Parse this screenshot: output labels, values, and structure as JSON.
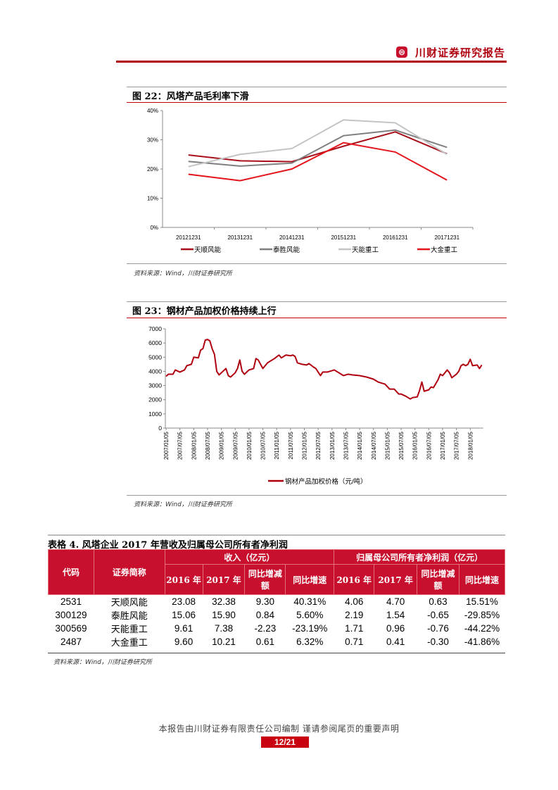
{
  "header": {
    "brand": "川财证券研究报告",
    "logo_icon": "chuancai-logo-icon",
    "accent": "#b0000f"
  },
  "figure22": {
    "title": "图 22：风塔产品毛利率下滑",
    "source": "资料来源：Wind，川财证券研究所",
    "chart_data": {
      "type": "line",
      "categories": [
        "20121231",
        "20131231",
        "20141231",
        "20151231",
        "20161231",
        "20171231"
      ],
      "y_ticks": [
        "0%",
        "10%",
        "20%",
        "30%",
        "40%"
      ],
      "ylim": [
        0,
        40
      ],
      "unit": "%",
      "legend_position": "bottom",
      "grid": false,
      "series": [
        {
          "name": "天顺风能",
          "color": "#a80f1a",
          "values": [
            24.8,
            22.8,
            22.5,
            27.8,
            32.7,
            25.2
          ]
        },
        {
          "name": "泰胜风能",
          "color": "#7f7f7f",
          "values": [
            22.6,
            21.0,
            22.0,
            31.4,
            33.3,
            27.4
          ]
        },
        {
          "name": "天能重工",
          "color": "#c3c3c3",
          "values": [
            20.8,
            25.0,
            27.0,
            36.8,
            35.8,
            25.0
          ]
        },
        {
          "name": "大金重工",
          "color": "#e3141c",
          "values": [
            18.2,
            16.0,
            20.0,
            29.0,
            25.8,
            16.2
          ]
        }
      ]
    }
  },
  "figure23": {
    "title": "图 23：钢材产品加权价格持续上行",
    "source": "资料来源：Wind，川财证券研究所",
    "chart_data": {
      "type": "line",
      "y_ticks": [
        "0",
        "1000",
        "2000",
        "3000",
        "4000",
        "5000",
        "6000",
        "7000"
      ],
      "ylim": [
        0,
        7000
      ],
      "x_ticks": [
        "2007/01/05",
        "2007/07/05",
        "2008/01/05",
        "2008/07/05",
        "2009/01/05",
        "2009/07/05",
        "2010/01/05",
        "2010/07/05",
        "2011/01/05",
        "2011/07/05",
        "2012/01/05",
        "2012/07/05",
        "2013/01/05",
        "2013/07/05",
        "2014/01/05",
        "2014/07/05",
        "2015/01/05",
        "2015/07/05",
        "2016/01/05",
        "2016/07/05",
        "2017/01/05",
        "2017/07/05",
        "2018/01/05"
      ],
      "legend_position": "bottom",
      "series": [
        {
          "name": "钢材产品加权价格（元/吨）",
          "color": "#b0000f",
          "points": [
            [
              "2007-01",
              3650
            ],
            [
              "2007-02",
              3800
            ],
            [
              "2007-04",
              3800
            ],
            [
              "2007-05",
              4100
            ],
            [
              "2007-07",
              3950
            ],
            [
              "2007-09",
              4100
            ],
            [
              "2007-10",
              4400
            ],
            [
              "2007-12",
              4500
            ],
            [
              "2008-01",
              5000
            ],
            [
              "2008-03",
              4950
            ],
            [
              "2008-04",
              5500
            ],
            [
              "2008-05",
              5600
            ],
            [
              "2008-06",
              6200
            ],
            [
              "2008-07",
              6250
            ],
            [
              "2008-08",
              6150
            ],
            [
              "2008-09",
              5600
            ],
            [
              "2008-10",
              5200
            ],
            [
              "2008-11",
              4000
            ],
            [
              "2008-12",
              3750
            ],
            [
              "2009-01",
              3900
            ],
            [
              "2009-03",
              4200
            ],
            [
              "2009-04",
              3700
            ],
            [
              "2009-05",
              3600
            ],
            [
              "2009-07",
              3900
            ],
            [
              "2009-08",
              4200
            ],
            [
              "2009-09",
              4800
            ],
            [
              "2009-10",
              4000
            ],
            [
              "2009-11",
              3800
            ],
            [
              "2010-01",
              4100
            ],
            [
              "2010-03",
              4200
            ],
            [
              "2010-04",
              4900
            ],
            [
              "2010-05",
              4800
            ],
            [
              "2010-06",
              4500
            ],
            [
              "2010-07",
              4200
            ],
            [
              "2010-09",
              4600
            ],
            [
              "2010-10",
              4700
            ],
            [
              "2010-12",
              4900
            ],
            [
              "2011-02",
              5150
            ],
            [
              "2011-03",
              4950
            ],
            [
              "2011-05",
              5150
            ],
            [
              "2011-07",
              5100
            ],
            [
              "2011-08",
              5150
            ],
            [
              "2011-09",
              5050
            ],
            [
              "2011-10",
              4600
            ],
            [
              "2011-12",
              4500
            ],
            [
              "2012-02",
              4450
            ],
            [
              "2012-03",
              4550
            ],
            [
              "2012-05",
              4300
            ],
            [
              "2012-06",
              4200
            ],
            [
              "2012-08",
              3700
            ],
            [
              "2012-09",
              3950
            ],
            [
              "2012-11",
              3950
            ],
            [
              "2013-02",
              4100
            ],
            [
              "2013-04",
              3900
            ],
            [
              "2013-06",
              3700
            ],
            [
              "2013-08",
              3800
            ],
            [
              "2013-10",
              3750
            ],
            [
              "2014-01",
              3700
            ],
            [
              "2014-04",
              3600
            ],
            [
              "2014-07",
              3450
            ],
            [
              "2014-09",
              3250
            ],
            [
              "2014-12",
              3100
            ],
            [
              "2015-02",
              2750
            ],
            [
              "2015-04",
              2750
            ],
            [
              "2015-06",
              2400
            ],
            [
              "2015-07",
              2400
            ],
            [
              "2015-09",
              2250
            ],
            [
              "2015-11",
              2050
            ],
            [
              "2015-12",
              2150
            ],
            [
              "2016-02",
              2200
            ],
            [
              "2016-03",
              2650
            ],
            [
              "2016-04",
              3250
            ],
            [
              "2016-05",
              2600
            ],
            [
              "2016-07",
              2700
            ],
            [
              "2016-08",
              2900
            ],
            [
              "2016-09",
              2850
            ],
            [
              "2016-11",
              3400
            ],
            [
              "2016-12",
              3800
            ],
            [
              "2017-01",
              3700
            ],
            [
              "2017-03",
              4100
            ],
            [
              "2017-04",
              3900
            ],
            [
              "2017-05",
              3550
            ],
            [
              "2017-07",
              3800
            ],
            [
              "2017-08",
              4000
            ],
            [
              "2017-09",
              4400
            ],
            [
              "2017-10",
              4500
            ],
            [
              "2017-11",
              4400
            ],
            [
              "2017-12",
              4500
            ],
            [
              "2018-01",
              4850
            ],
            [
              "2018-02",
              4400
            ],
            [
              "2018-04",
              4450
            ],
            [
              "2018-05",
              4200
            ],
            [
              "2018-06",
              4450
            ]
          ]
        }
      ]
    }
  },
  "table4": {
    "title": "表格 4. 风塔企业 2017 年营收及归属母公司所有者净利润",
    "group_headers": [
      "收入（亿元）",
      "归属母公司所有者净利润（亿元）"
    ],
    "col_code": "代码",
    "col_name": "证券简称",
    "sub_headers": [
      "2016 年",
      "2017 年",
      "同比增减额",
      "同比增速",
      "2016 年",
      "2017 年",
      "同比增减额",
      "同比增速"
    ],
    "rows": [
      [
        "2531",
        "天顺风能",
        "23.08",
        "32.38",
        "9.30",
        "40.31%",
        "4.06",
        "4.70",
        "0.63",
        "15.51%"
      ],
      [
        "300129",
        "泰胜风能",
        "15.06",
        "15.90",
        "0.84",
        "5.60%",
        "2.19",
        "1.54",
        "-0.65",
        "-29.85%"
      ],
      [
        "300569",
        "天能重工",
        "9.61",
        "7.38",
        "-2.23",
        "-23.19%",
        "1.71",
        "0.96",
        "-0.76",
        "-44.22%"
      ],
      [
        "2487",
        "大金重工",
        "9.60",
        "10.21",
        "0.61",
        "6.32%",
        "0.71",
        "0.41",
        "-0.30",
        "-41.86%"
      ]
    ],
    "source": "资料来源：Wind，川财证券研究所"
  },
  "footer": {
    "disclaimer": "本报告由川财证券有限责任公司编制  谨请参阅尾页的重要声明",
    "page": "12/21"
  }
}
